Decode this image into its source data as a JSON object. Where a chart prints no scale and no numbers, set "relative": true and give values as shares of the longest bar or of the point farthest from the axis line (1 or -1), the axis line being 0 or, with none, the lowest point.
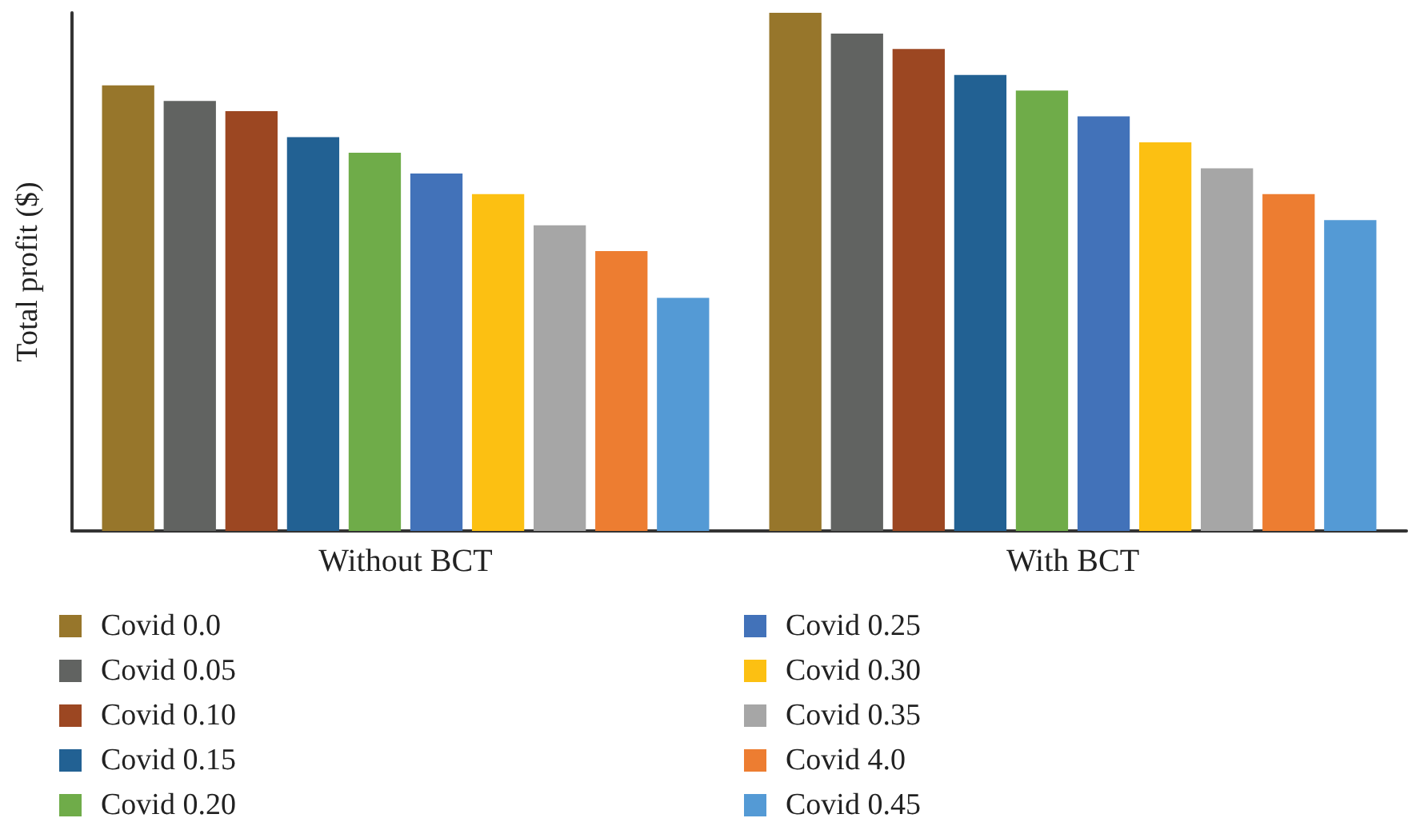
{
  "chart_data": {
    "type": "bar",
    "relative": true,
    "ylabel": "Total profit ($)",
    "categories": [
      "Without BCT",
      "With BCT"
    ],
    "series": [
      {
        "name": "Covid 0.0",
        "color": "#97762b",
        "values": [
          0.86,
          1
        ]
      },
      {
        "name": "Covid 0.05",
        "color": "#616361",
        "values": [
          0.83,
          0.96
        ]
      },
      {
        "name": "Covid 0.10",
        "color": "#9c4722",
        "values": [
          0.81,
          0.93
        ]
      },
      {
        "name": "Covid 0.15",
        "color": "#226193",
        "values": [
          0.76,
          0.88
        ]
      },
      {
        "name": "Covid 0.20",
        "color": "#6fac49",
        "values": [
          0.73,
          0.85
        ]
      },
      {
        "name": "Covid 0.25",
        "color": "#4272b9",
        "values": [
          0.69,
          0.8
        ]
      },
      {
        "name": "Covid 0.30",
        "color": "#fcc012",
        "values": [
          0.65,
          0.75
        ]
      },
      {
        "name": "Covid 0.35",
        "color": "#a6a6a6",
        "values": [
          0.59,
          0.7
        ]
      },
      {
        "name": "Covid 4.0",
        "color": "#ed7d31",
        "values": [
          0.54,
          0.65
        ]
      },
      {
        "name": "Covid 0.45",
        "color": "#549ad5",
        "values": [
          0.45,
          0.6
        ]
      }
    ],
    "legend": "bottom",
    "grid": false
  }
}
